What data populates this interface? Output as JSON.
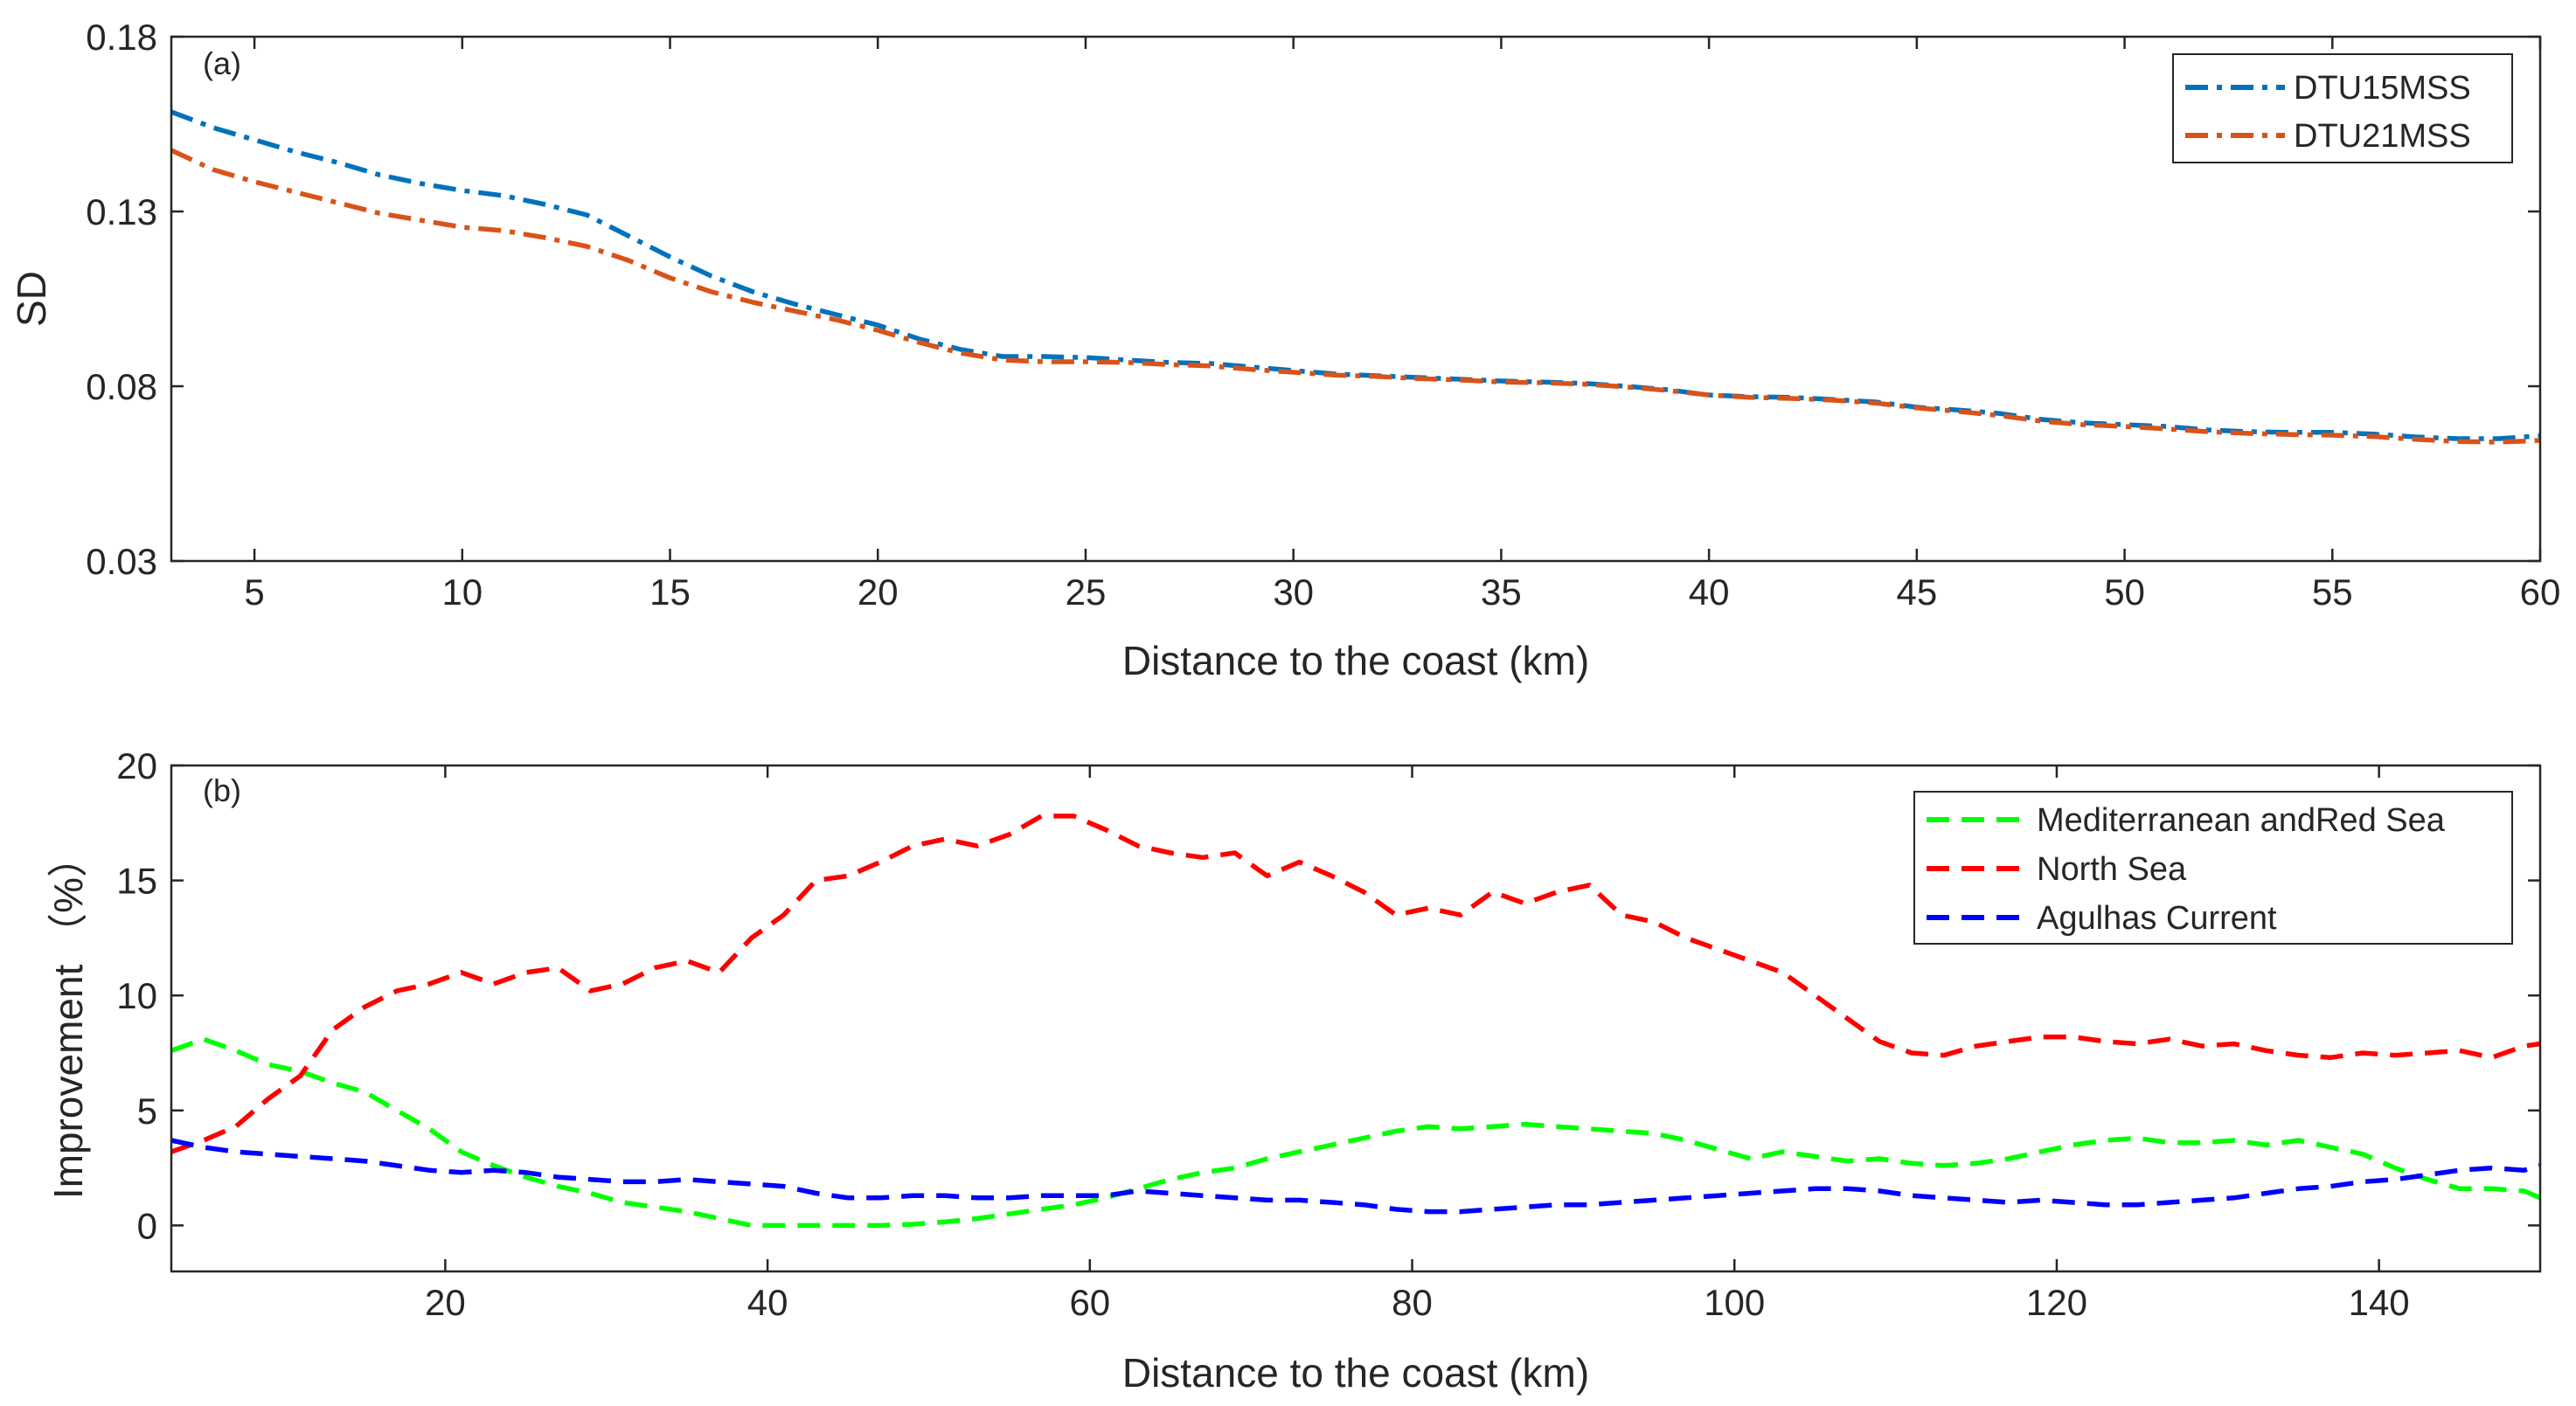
{
  "chart_data": [
    {
      "type": "line",
      "panel_tag": "(a)",
      "title": "",
      "xlabel": "Distance to the coast (km)",
      "ylabel": "SD",
      "xlim": [
        3,
        60
      ],
      "ylim": [
        0.03,
        0.18
      ],
      "xticks": [
        5,
        10,
        15,
        20,
        25,
        30,
        35,
        40,
        45,
        50,
        55,
        60
      ],
      "xtick_labels": [
        "5",
        "10",
        "15",
        "20",
        "25",
        "30",
        "35",
        "40",
        "45",
        "50",
        "55",
        "60"
      ],
      "yticks": [
        0.03,
        0.08,
        0.13,
        0.18
      ],
      "ytick_labels": [
        "0.03",
        "0.08",
        "0.13",
        "0.18"
      ],
      "grid": false,
      "legend_position": "top-right",
      "x": [
        3,
        4,
        5,
        6,
        7,
        8,
        9,
        10,
        11,
        12,
        13,
        14,
        15,
        16,
        17,
        18,
        19,
        20,
        21,
        22,
        23,
        24,
        25,
        26,
        27,
        28,
        29,
        30,
        31,
        32,
        33,
        34,
        35,
        36,
        37,
        38,
        39,
        40,
        41,
        42,
        43,
        44,
        45,
        46,
        47,
        48,
        49,
        50,
        51,
        52,
        53,
        54,
        55,
        56,
        57,
        58,
        59,
        60
      ],
      "series": [
        {
          "name": "DTU15MSS",
          "color": "#0072BD",
          "values": [
            0.1585,
            0.154,
            0.1505,
            0.147,
            0.144,
            0.1405,
            0.138,
            0.136,
            0.1345,
            0.132,
            0.129,
            0.123,
            0.117,
            0.1115,
            0.107,
            0.1035,
            0.1005,
            0.0975,
            0.0935,
            0.0905,
            0.0885,
            0.0885,
            0.0882,
            0.0875,
            0.0868,
            0.0865,
            0.0855,
            0.0845,
            0.0835,
            0.083,
            0.0825,
            0.082,
            0.0815,
            0.0812,
            0.0808,
            0.08,
            0.079,
            0.0775,
            0.077,
            0.0768,
            0.0762,
            0.0755,
            0.074,
            0.0732,
            0.0722,
            0.0705,
            0.0695,
            0.069,
            0.0685,
            0.0675,
            0.067,
            0.0668,
            0.0668,
            0.0663,
            0.0655,
            0.065,
            0.065,
            0.0658
          ]
        },
        {
          "name": "DTU21MSS",
          "color": "#D95319",
          "values": [
            0.1475,
            0.142,
            0.1385,
            0.1355,
            0.1325,
            0.1295,
            0.1275,
            0.1255,
            0.1245,
            0.1225,
            0.12,
            0.116,
            0.111,
            0.107,
            0.104,
            0.1015,
            0.099,
            0.096,
            0.0925,
            0.0895,
            0.0875,
            0.087,
            0.087,
            0.0868,
            0.0862,
            0.0858,
            0.0848,
            0.084,
            0.0832,
            0.0828,
            0.0822,
            0.0818,
            0.0812,
            0.081,
            0.0806,
            0.0798,
            0.0788,
            0.0775,
            0.0768,
            0.0765,
            0.076,
            0.0752,
            0.0738,
            0.0728,
            0.0716,
            0.07,
            0.069,
            0.0685,
            0.0678,
            0.067,
            0.0665,
            0.0662,
            0.066,
            0.0656,
            0.0648,
            0.0642,
            0.064,
            0.0645
          ]
        }
      ]
    },
    {
      "type": "line",
      "panel_tag": "(b)",
      "title": "",
      "xlabel": "Distance to the coast (km)",
      "ylabel": "Improvement （%）",
      "xlim": [
        3,
        150
      ],
      "ylim": [
        -2,
        20
      ],
      "xticks": [
        20,
        40,
        60,
        80,
        100,
        120,
        140
      ],
      "xtick_labels": [
        "20",
        "40",
        "60",
        "80",
        "100",
        "120",
        "140"
      ],
      "yticks": [
        0,
        5,
        10,
        15,
        20
      ],
      "ytick_labels": [
        "0",
        "5",
        "10",
        "15",
        "20"
      ],
      "grid": false,
      "legend_position": "top-right",
      "x": [
        3,
        5,
        7,
        9,
        11,
        13,
        15,
        17,
        19,
        21,
        23,
        25,
        27,
        29,
        31,
        33,
        35,
        37,
        39,
        41,
        43,
        45,
        47,
        49,
        51,
        53,
        55,
        57,
        59,
        61,
        63,
        65,
        67,
        69,
        71,
        73,
        75,
        77,
        79,
        81,
        83,
        85,
        87,
        89,
        91,
        93,
        95,
        97,
        99,
        101,
        103,
        105,
        107,
        109,
        111,
        113,
        115,
        117,
        119,
        121,
        123,
        125,
        127,
        129,
        131,
        133,
        135,
        137,
        139,
        141,
        143,
        145,
        147,
        149,
        150
      ],
      "series": [
        {
          "name": "Mediterranean andRed Sea",
          "color": "#00FF00",
          "values": [
            7.6,
            8.1,
            7.6,
            7.0,
            6.7,
            6.2,
            5.8,
            5.0,
            4.2,
            3.2,
            2.6,
            2.1,
            1.7,
            1.4,
            1.0,
            0.8,
            0.6,
            0.3,
            0.0,
            0.0,
            0.0,
            0.0,
            0.0,
            0.05,
            0.15,
            0.3,
            0.5,
            0.7,
            0.9,
            1.2,
            1.6,
            2.0,
            2.3,
            2.5,
            2.9,
            3.2,
            3.5,
            3.8,
            4.1,
            4.3,
            4.2,
            4.3,
            4.4,
            4.3,
            4.2,
            4.1,
            4.0,
            3.7,
            3.3,
            2.9,
            3.2,
            3.0,
            2.8,
            2.9,
            2.7,
            2.6,
            2.7,
            2.9,
            3.2,
            3.5,
            3.7,
            3.8,
            3.6,
            3.6,
            3.7,
            3.5,
            3.7,
            3.4,
            3.1,
            2.5,
            2.0,
            1.6,
            1.6,
            1.5,
            1.2
          ]
        },
        {
          "name": "North Sea",
          "color": "#FF0000",
          "values": [
            3.2,
            3.7,
            4.3,
            5.5,
            6.5,
            8.5,
            9.5,
            10.2,
            10.5,
            11.0,
            10.5,
            11.0,
            11.2,
            10.2,
            10.5,
            11.2,
            11.5,
            11.0,
            12.5,
            13.5,
            15.0,
            15.2,
            15.8,
            16.5,
            16.8,
            16.5,
            17.0,
            17.8,
            17.8,
            17.2,
            16.5,
            16.2,
            16.0,
            16.2,
            15.2,
            15.8,
            15.2,
            14.5,
            13.5,
            13.8,
            13.5,
            14.5,
            14.0,
            14.5,
            14.8,
            13.5,
            13.2,
            12.5,
            12.0,
            11.5,
            11.0,
            10.0,
            9.0,
            8.0,
            7.5,
            7.4,
            7.8,
            8.0,
            8.2,
            8.2,
            8.0,
            7.9,
            8.1,
            7.8,
            7.9,
            7.6,
            7.4,
            7.3,
            7.5,
            7.4,
            7.5,
            7.6,
            7.3,
            7.8,
            7.9
          ]
        },
        {
          "name": "Agulhas Current",
          "color": "#0000FF",
          "values": [
            3.7,
            3.4,
            3.2,
            3.1,
            3.0,
            2.9,
            2.8,
            2.6,
            2.4,
            2.3,
            2.4,
            2.3,
            2.1,
            2.0,
            1.9,
            1.9,
            2.0,
            1.9,
            1.8,
            1.7,
            1.4,
            1.2,
            1.2,
            1.3,
            1.3,
            1.2,
            1.2,
            1.3,
            1.3,
            1.3,
            1.5,
            1.4,
            1.3,
            1.2,
            1.1,
            1.1,
            1.0,
            0.9,
            0.7,
            0.6,
            0.6,
            0.7,
            0.8,
            0.9,
            0.9,
            1.0,
            1.1,
            1.2,
            1.3,
            1.4,
            1.5,
            1.6,
            1.6,
            1.5,
            1.3,
            1.2,
            1.1,
            1.0,
            1.1,
            1.0,
            0.9,
            0.9,
            1.0,
            1.1,
            1.2,
            1.4,
            1.6,
            1.7,
            1.9,
            2.0,
            2.2,
            2.4,
            2.5,
            2.4,
            2.6
          ]
        }
      ]
    }
  ]
}
